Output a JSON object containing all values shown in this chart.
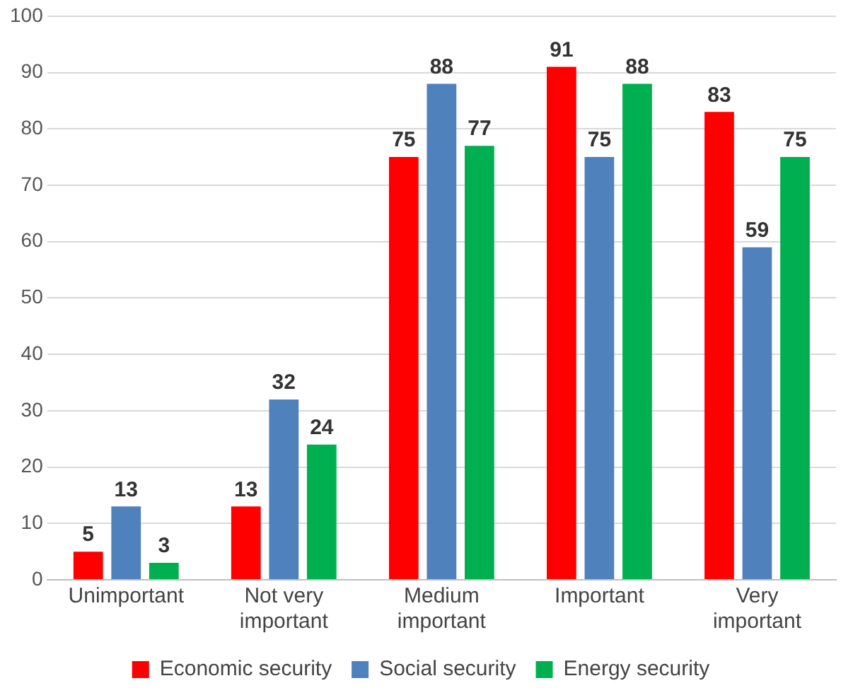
{
  "chart_data": {
    "type": "bar",
    "categories": [
      "Unimportant",
      "Not very important",
      "Medium important",
      "Important",
      "Very important"
    ],
    "series": [
      {
        "name": "Economic security",
        "color": "#ff0000",
        "values": [
          5,
          13,
          75,
          91,
          83
        ]
      },
      {
        "name": "Social security",
        "color": "#4f81bd",
        "values": [
          13,
          32,
          88,
          75,
          59
        ]
      },
      {
        "name": "Energy security",
        "color": "#00b050",
        "values": [
          3,
          24,
          77,
          88,
          75
        ]
      }
    ],
    "ylim": [
      0,
      100
    ],
    "yticks": [
      0,
      10,
      20,
      30,
      40,
      50,
      60,
      70,
      80,
      90,
      100
    ],
    "grid": "y",
    "legend": "bottom",
    "data_labels": true
  }
}
